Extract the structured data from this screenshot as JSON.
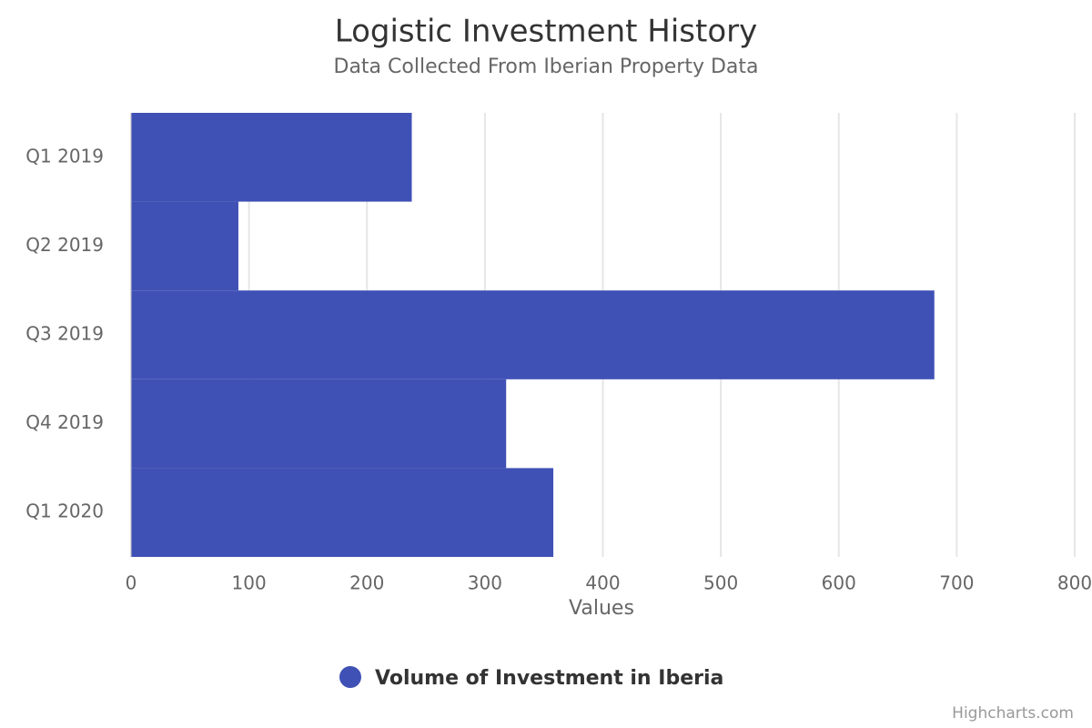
{
  "chart_data": {
    "type": "bar",
    "title": "Logistic Investment History",
    "subtitle": "Data Collected From Iberian Property Data",
    "categories": [
      "Q1 2019",
      "Q2 2019",
      "Q3 2019",
      "Q4 2019",
      "Q1 2020"
    ],
    "series": [
      {
        "name": "Volume of Investment in Iberia",
        "color": "#3f51b5",
        "values": [
          238,
          91,
          681,
          318,
          358
        ]
      }
    ],
    "x_axis_title": "Values",
    "xlim": [
      0,
      800
    ],
    "xticks": [
      0,
      100,
      200,
      300,
      400,
      500,
      600,
      700,
      800
    ],
    "grid": true,
    "credits": "Highcharts.com"
  }
}
